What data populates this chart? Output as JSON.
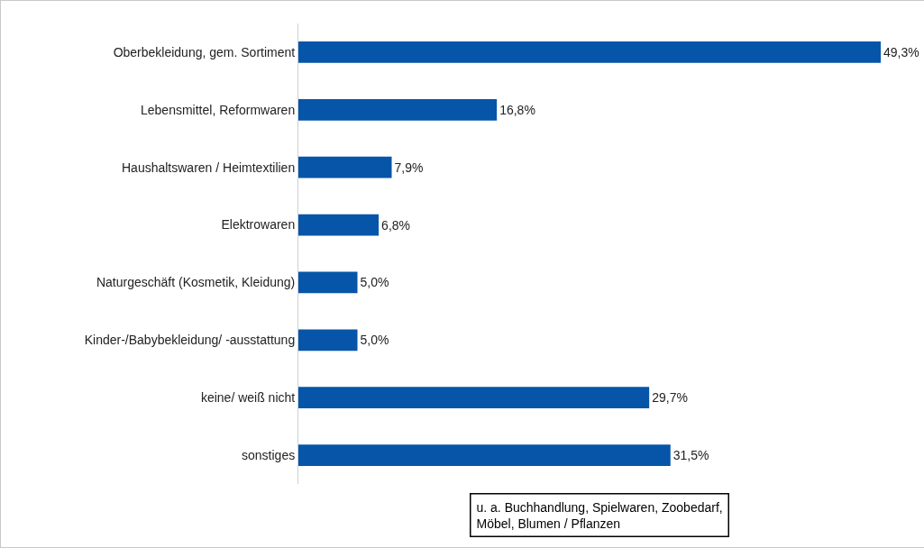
{
  "chart_data": {
    "type": "bar",
    "orientation": "horizontal",
    "categories": [
      "Oberbekleidung, gem. Sortiment",
      "Lebensmittel, Reformwaren",
      "Haushaltswaren / Heimtextilien",
      "Elektrowaren",
      "Naturgeschäft (Kosmetik, Kleidung)",
      "Kinder-/Babybekleidung/ -ausstattung",
      "keine/ weiß nicht",
      "sonstiges"
    ],
    "values": [
      49.3,
      16.8,
      7.9,
      6.8,
      5.0,
      5.0,
      29.7,
      31.5
    ],
    "value_labels": [
      "49,3%",
      "16,8%",
      "7,9%",
      "6,8%",
      "5,0%",
      "5,0%",
      "29,7%",
      "31,5%"
    ],
    "color": "#0655a8",
    "tick_labels": "y",
    "legend": false,
    "annotations": [
      "u. a. Buchhandlung, Spielwaren, Zoobedarf,\nMöbel, Blumen / Pflanzen"
    ]
  }
}
